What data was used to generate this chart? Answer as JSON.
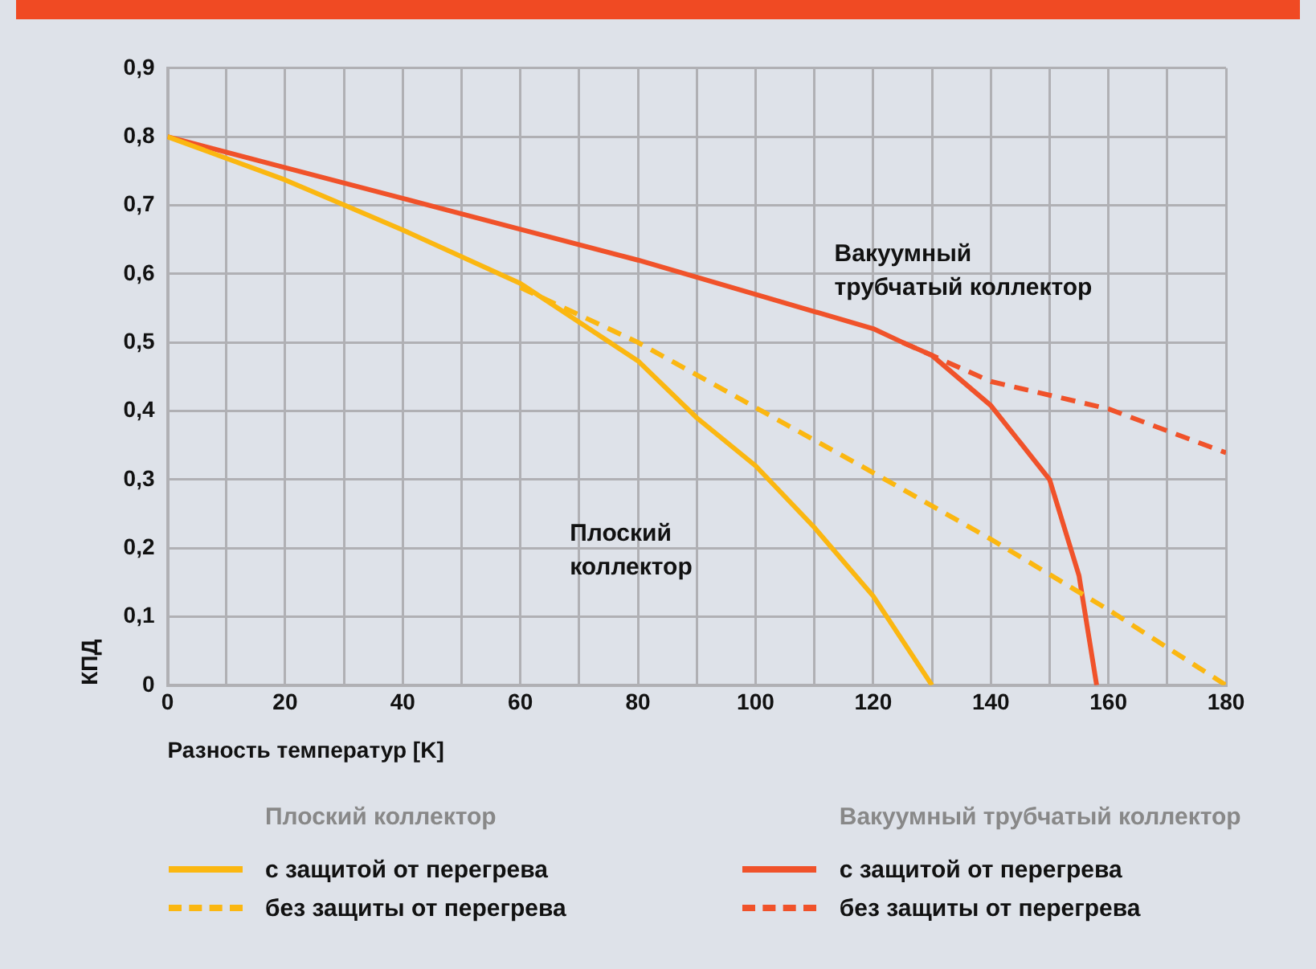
{
  "chart_data": {
    "type": "line",
    "xlabel": "Разность температур [K]",
    "ylabel": "КПД",
    "xlim": [
      0,
      180
    ],
    "ylim": [
      0,
      0.9
    ],
    "xticks": [
      0,
      {
        "value": 10,
        "label": null
      },
      20,
      {
        "value": 30,
        "label": null
      },
      40,
      {
        "value": 50,
        "label": null
      },
      60,
      {
        "value": 70,
        "label": null
      },
      80,
      {
        "value": 90,
        "label": null
      },
      100,
      {
        "value": 110,
        "label": null
      },
      120,
      {
        "value": 130,
        "label": null
      },
      140,
      {
        "value": 150,
        "label": null
      },
      160,
      {
        "value": 170,
        "label": null
      },
      180
    ],
    "yticks": [
      0,
      {
        "value": 0.1,
        "label": "0,1"
      },
      {
        "value": 0.2,
        "label": "0,2"
      },
      {
        "value": 0.3,
        "label": "0,3"
      },
      {
        "value": 0.4,
        "label": "0,4"
      },
      {
        "value": 0.5,
        "label": "0,5"
      },
      {
        "value": 0.6,
        "label": "0,6"
      },
      {
        "value": 0.7,
        "label": "0,7"
      },
      {
        "value": 0.8,
        "label": "0,8"
      },
      {
        "value": 0.9,
        "label": "0,9"
      }
    ],
    "grid": true,
    "legend": "bottom",
    "marker": "none",
    "series": [
      {
        "name": "с защитой от перегрева",
        "color": "#fbb711",
        "line_style": "solid",
        "x": [
          0,
          20,
          40,
          60,
          80,
          90,
          100,
          110,
          120,
          130
        ],
        "values": [
          0.8,
          0.737,
          0.664,
          0.586,
          0.473,
          0.39,
          0.32,
          0.23,
          0.13,
          0
        ]
      },
      {
        "name": "без защиты от перегрева",
        "color": "#fbb711",
        "line_style": "dashed",
        "x": [
          60,
          80,
          100,
          120,
          140,
          160,
          180
        ],
        "values": [
          0.58,
          0.5,
          0.405,
          0.31,
          0.213,
          0.11,
          0
        ]
      },
      {
        "name": "с защитой от перегрева",
        "color": "#f0522a",
        "line_style": "solid",
        "x": [
          0,
          20,
          40,
          60,
          80,
          100,
          120,
          125,
          130,
          140,
          150,
          155,
          158
        ],
        "values": [
          0.8,
          0.755,
          0.71,
          0.665,
          0.62,
          0.57,
          0.52,
          0.5,
          0.481,
          0.408,
          0.3,
          0.16,
          0
        ]
      },
      {
        "name": "без защиты от перегрева",
        "color": "#f0522a",
        "line_style": "dashed",
        "x": [
          125,
          140,
          160,
          180
        ],
        "values": [
          0.5,
          0.443,
          0.403,
          0.339
        ]
      }
    ],
    "annotations": [
      "Плоский коллектор",
      "Вакуумный трубчатый коллектор",
      "Плоский коллектор",
      "Вакуумный трубчатый коллектор"
    ]
  }
}
